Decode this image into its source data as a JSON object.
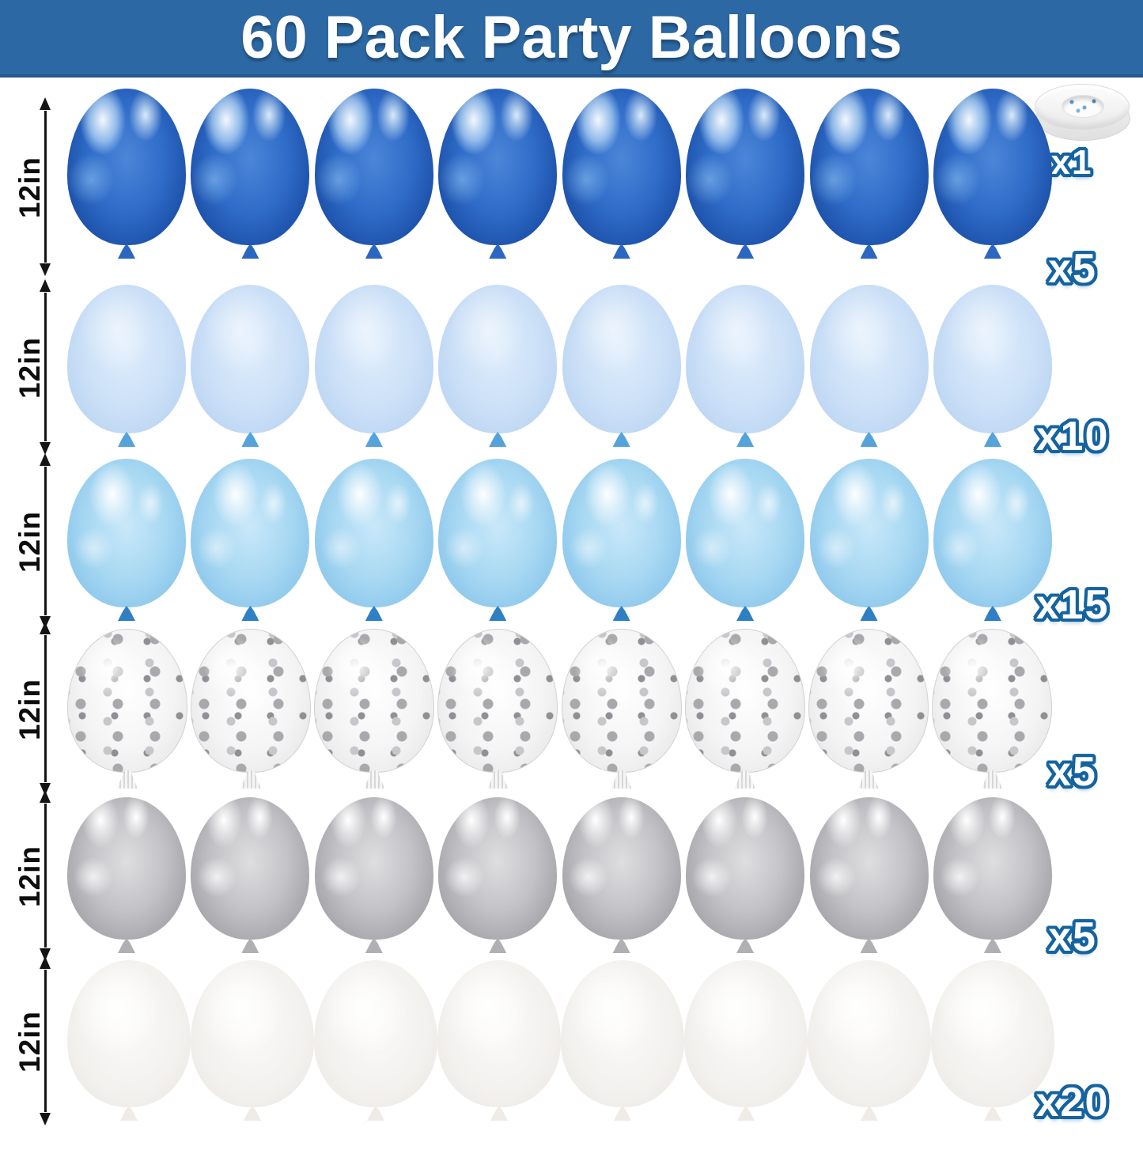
{
  "banner": {
    "title": "60 Pack Party Balloons",
    "bg_color": "#2c68a4",
    "text_color": "#ffffff"
  },
  "ribbon": {
    "name": "white-balloon-ribbon-roll",
    "count_label": "x1"
  },
  "rows": [
    {
      "type": "metallic-blue",
      "size_label": "12in",
      "count_label": "x5",
      "balloons_per_row": 8
    },
    {
      "type": "pastel-blue",
      "size_label": "12in",
      "count_label": "x10",
      "balloons_per_row": 8
    },
    {
      "type": "pearl-blue",
      "size_label": "12in",
      "count_label": "x15",
      "balloons_per_row": 8
    },
    {
      "type": "silver-confetti",
      "size_label": "12in",
      "count_label": "x5",
      "balloons_per_row": 8
    },
    {
      "type": "metallic-silver",
      "size_label": "12in",
      "count_label": "x5",
      "balloons_per_row": 8
    },
    {
      "type": "white",
      "size_label": "12in",
      "count_label": "x20",
      "balloons_per_row": 8
    }
  ],
  "colors": {
    "count_outline_blue": "#15639f",
    "chrome_blue": "#2f6cc8",
    "pastel_blue": "#cadff7",
    "pearl_blue": "#a6d7f2",
    "silver": "#c3c3c7",
    "white_balloon": "#f3f1ee",
    "dimension_text": "#0d0d0d"
  }
}
